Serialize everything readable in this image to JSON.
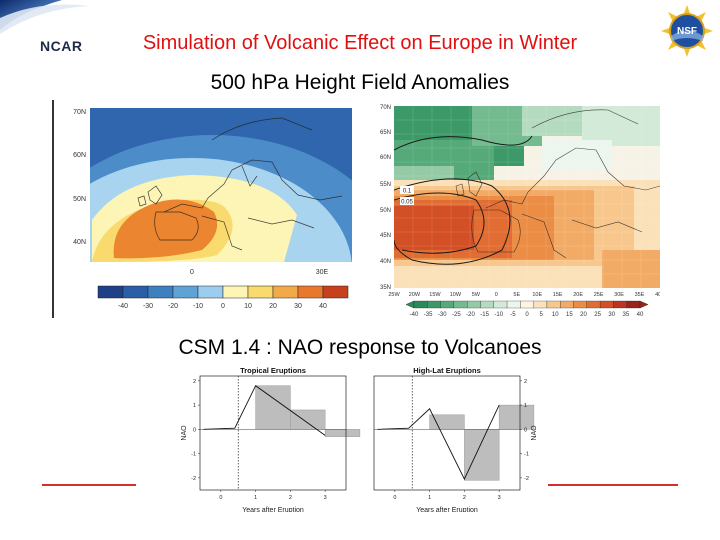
{
  "header": {
    "org": "NCAR",
    "title": "Simulation of Volcanic Effect on Europe in Winter",
    "nsf_label": "NSF"
  },
  "section1": {
    "title": "500 hPa Height Field Anomalies"
  },
  "section2": {
    "title": "CSM 1.4 : NAO response to Volcanoes"
  },
  "left_map": {
    "lat_labels": [
      "70N",
      "60N",
      "50N",
      "40N"
    ],
    "lon_labels": [
      "0",
      "30E"
    ],
    "colorbar_labels": [
      "-40",
      "-30",
      "-20",
      "-10",
      "0",
      "10",
      "20",
      "30",
      "40"
    ],
    "colorbar_colors": [
      "#1f3f86",
      "#2a5ea6",
      "#3d80c0",
      "#5fa2d6",
      "#9ccdee",
      "#fdf5b6",
      "#f8da6e",
      "#f2aa48",
      "#e8782c",
      "#c6401e"
    ]
  },
  "right_map": {
    "lat_labels": [
      "70N",
      "65N",
      "60N",
      "55N",
      "50N",
      "45N",
      "40N",
      "35N"
    ],
    "lon_labels": [
      "25W",
      "20W",
      "15W",
      "10W",
      "5W",
      "0",
      "5E",
      "10E",
      "15E",
      "20E",
      "25E",
      "30E",
      "35E",
      "40E"
    ],
    "contour_labels": [
      "0.1",
      "0.05"
    ],
    "colorbar_labels": [
      "-40",
      "-35",
      "-30",
      "-25",
      "-20",
      "-15",
      "-10",
      "-5",
      "0",
      "5",
      "10",
      "15",
      "20",
      "25",
      "30",
      "35",
      "40"
    ],
    "colorbar_colors": [
      "#2a8a5a",
      "#3d9a68",
      "#56aa7a",
      "#74bb8f",
      "#94cba6",
      "#b4dbbf",
      "#d2ead7",
      "#ecf6ef",
      "#fff4df",
      "#fbe1b9",
      "#f7c78e",
      "#f2ab66",
      "#ec8d46",
      "#e26d33",
      "#d34f26",
      "#bb3522",
      "#9c221c"
    ]
  },
  "chart_data": [
    {
      "type": "bar",
      "title": "Tropical Eruptions",
      "xlabel": "Years after Eruption",
      "ylabel": "NAO",
      "categories": [
        0,
        1,
        2,
        3
      ],
      "values": [
        0,
        1.8,
        0.8,
        -0.3
      ],
      "line": [
        [
          -0.5,
          0
        ],
        [
          0.4,
          0.05
        ],
        [
          1,
          1.8
        ],
        [
          3,
          -0.25
        ]
      ],
      "eruption_marker_x": 0.5,
      "ylim": [
        -2.5,
        2.2
      ],
      "xlim": [
        -0.6,
        3.6
      ],
      "yticks": [
        -2,
        -1,
        0,
        1,
        2
      ],
      "xticks": [
        0,
        1,
        2,
        3
      ],
      "ytick_side": "left"
    },
    {
      "type": "bar",
      "title": "High-Lat Eruptions",
      "xlabel": "Years after Eruption",
      "ylabel": "NAO",
      "categories": [
        0,
        1,
        2,
        3
      ],
      "values": [
        0,
        0.6,
        -2.1,
        1.0
      ],
      "line": [
        [
          -0.5,
          0
        ],
        [
          0.4,
          0.05
        ],
        [
          1,
          0.85
        ],
        [
          2,
          -2.05
        ],
        [
          3,
          1.0
        ]
      ],
      "eruption_marker_x": 0.5,
      "ylim": [
        -2.5,
        2.2
      ],
      "xlim": [
        -0.6,
        3.6
      ],
      "yticks": [
        -2,
        -1,
        0,
        1,
        2
      ],
      "xticks": [
        0,
        1,
        2,
        3
      ],
      "ytick_side": "right"
    }
  ]
}
